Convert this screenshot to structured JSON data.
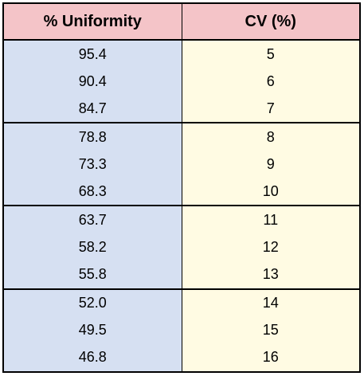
{
  "table": {
    "headers": [
      "% Uniformity",
      "CV (%)"
    ],
    "rows": [
      [
        "95.4",
        "5"
      ],
      [
        "90.4",
        "6"
      ],
      [
        "84.7",
        "7"
      ],
      [
        "78.8",
        "8"
      ],
      [
        "73.3",
        "9"
      ],
      [
        "68.3",
        "10"
      ],
      [
        "63.7",
        "11"
      ],
      [
        "58.2",
        "12"
      ],
      [
        "55.8",
        "13"
      ],
      [
        "52.0",
        "14"
      ],
      [
        "49.5",
        "15"
      ],
      [
        "46.8",
        "16"
      ]
    ]
  },
  "colors": {
    "header_bg": "#f4c4c8",
    "uniformity_bg": "#d6e0f2",
    "cv_bg": "#fffbe3",
    "border": "#000000"
  }
}
